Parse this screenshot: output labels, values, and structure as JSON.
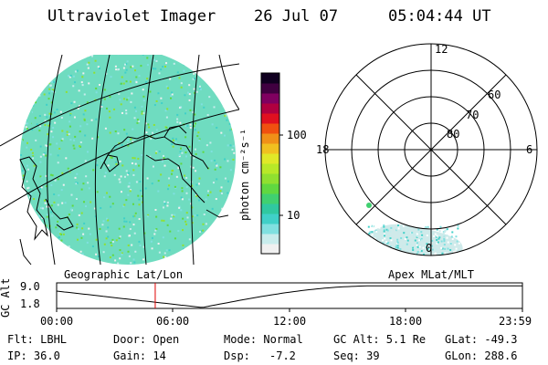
{
  "header": {
    "title": "Ultraviolet Imager",
    "date": "26 Jul 07",
    "time": "05:04:44 UT"
  },
  "colorbar": {
    "unit_label": "photon cm⁻²s⁻¹",
    "ticks": [
      "100",
      "10"
    ],
    "colors": [
      "#f0f0f0",
      "#c8ecec",
      "#80e0e0",
      "#40d0c8",
      "#30c8a0",
      "#40d070",
      "#60d840",
      "#90e030",
      "#b8e828",
      "#e0e828",
      "#f0c020",
      "#f09018",
      "#f05010",
      "#e01020",
      "#b00040",
      "#800060",
      "#400040",
      "#100020"
    ]
  },
  "polar": {
    "rings": [
      "80",
      "70",
      "60"
    ],
    "mlt": {
      "top": "12",
      "left": "18",
      "right": "6",
      "bottom": "0"
    }
  },
  "map_label": "Geographic Lat/Lon",
  "polar_label": "Apex MLat/MLT",
  "altitude_plot": {
    "axis_label": "GC Alt",
    "y_ticks": [
      "9.0",
      "1.8"
    ],
    "x_ticks": [
      "00:00",
      "06:00",
      "12:00",
      "18:00",
      "23:59"
    ],
    "current_time_hours": 5.08,
    "marker_color": "#e00000"
  },
  "status": {
    "filter": "Flt: LBHL",
    "door": "Door: Open",
    "mode": "Mode: Normal",
    "gc_alt": "GC Alt: 5.1 Re",
    "glat": "GLat: -49.3",
    "ip": "IP: 36.0",
    "gain": "Gain: 14",
    "dsp_label": "Dsp:",
    "dsp_value": "-7.2",
    "seq": "Seq: 39",
    "glon": "GLon: 288.6"
  }
}
